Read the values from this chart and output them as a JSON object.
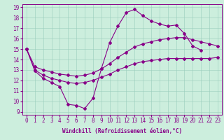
{
  "title": "",
  "xlabel": "Windchill (Refroidissement éolien,°C)",
  "background_color": "#cceedd",
  "line_color": "#880088",
  "xlim": [
    -0.5,
    23.5
  ],
  "ylim": [
    8.7,
    19.3
  ],
  "yticks": [
    9,
    10,
    11,
    12,
    13,
    14,
    15,
    16,
    17,
    18,
    19
  ],
  "xticks": [
    0,
    1,
    2,
    3,
    4,
    5,
    6,
    7,
    8,
    9,
    10,
    11,
    12,
    13,
    14,
    15,
    16,
    17,
    18,
    19,
    20,
    21,
    22,
    23
  ],
  "series1_x": [
    0,
    1,
    2,
    3,
    4,
    5,
    6,
    7,
    8,
    9,
    10,
    11,
    12,
    13,
    14,
    15,
    16,
    17,
    18,
    19,
    20,
    21
  ],
  "series1_y": [
    15.0,
    12.9,
    12.2,
    11.8,
    11.4,
    9.7,
    9.6,
    9.3,
    10.3,
    13.1,
    15.6,
    17.2,
    18.5,
    18.8,
    18.2,
    17.7,
    17.4,
    17.2,
    17.3,
    16.5,
    15.3,
    14.9
  ],
  "series2_x": [
    0,
    1,
    2,
    3,
    4,
    5,
    6,
    7,
    8,
    9,
    10,
    11,
    12,
    13,
    14,
    15,
    16,
    17,
    18,
    19,
    20,
    21,
    22,
    23
  ],
  "series2_y": [
    15.0,
    13.0,
    12.5,
    12.2,
    12.0,
    11.8,
    11.7,
    11.8,
    12.0,
    12.3,
    12.6,
    13.0,
    13.3,
    13.6,
    13.8,
    13.9,
    14.0,
    14.1,
    14.1,
    14.1,
    14.1,
    14.1,
    14.1,
    14.2
  ],
  "series3_x": [
    0,
    1,
    2,
    3,
    4,
    5,
    6,
    7,
    8,
    9,
    10,
    11,
    12,
    13,
    14,
    15,
    16,
    17,
    18,
    19,
    20,
    21,
    22,
    23
  ],
  "series3_y": [
    15.0,
    13.3,
    13.0,
    12.8,
    12.6,
    12.5,
    12.4,
    12.5,
    12.7,
    13.1,
    13.6,
    14.2,
    14.7,
    15.2,
    15.5,
    15.7,
    15.9,
    16.0,
    16.1,
    16.1,
    15.9,
    15.7,
    15.5,
    15.3
  ]
}
